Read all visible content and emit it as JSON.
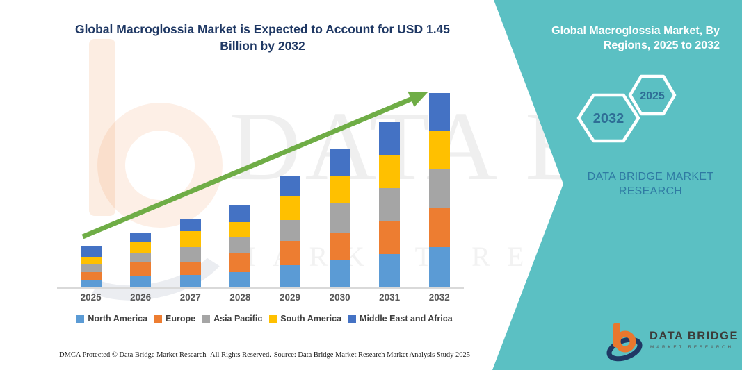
{
  "colors": {
    "teal_panel": "#5BC0C3",
    "title_navy": "#1F3864",
    "arrow_green": "#6FAD46",
    "axis_gray": "#D9D9D9",
    "x_label_gray": "#595959",
    "hex_year_blue": "#2E6E96",
    "panel_brand_blue": "#2F7AA3",
    "logo_orange": "#E8772E",
    "logo_navy": "#1F3864"
  },
  "header": {
    "title": "Global Macroglossia Market is Expected to Account for USD 1.45 Billion by 2032"
  },
  "panel": {
    "title": "Global Macroglossia Market, By Regions, 2025 to 2032",
    "hex_large": "2032",
    "hex_small": "2025",
    "brand_text": "DATA BRIDGE MARKET RESEARCH"
  },
  "logo": {
    "name": "DATA BRIDGE",
    "subtitle": "MARKET RESEARCH"
  },
  "watermark": {
    "big": "DATA BRIDGE",
    "small": "MARKET RESEARCH"
  },
  "footer": {
    "left": "DMCA Protected © Data Bridge Market Research-  All Rights Reserved.",
    "right": "Source: Data Bridge Market Research  Market Analysis Study 2025"
  },
  "chart_data": {
    "type": "bar",
    "stacked": true,
    "title": "Global Macroglossia Market is Expected to Account for USD 1.45 Billion by 2032",
    "unit": "USD billion (estimated from stylized chart; no value axis shown)",
    "target_annotation": "USD 1.45 Billion by 2032",
    "categories": [
      "2025",
      "2026",
      "2027",
      "2028",
      "2029",
      "2030",
      "2031",
      "2032"
    ],
    "series": [
      {
        "name": "North America",
        "color": "#5B9BD5",
        "values": [
          0.057,
          0.088,
          0.095,
          0.113,
          0.165,
          0.208,
          0.251,
          0.3
        ]
      },
      {
        "name": "Europe",
        "color": "#ED7D31",
        "values": [
          0.057,
          0.104,
          0.095,
          0.139,
          0.182,
          0.199,
          0.243,
          0.29
        ]
      },
      {
        "name": "Asia Pacific",
        "color": "#A5A5A5",
        "values": [
          0.057,
          0.062,
          0.113,
          0.121,
          0.156,
          0.225,
          0.251,
          0.29
        ]
      },
      {
        "name": "South America",
        "color": "#FFC000",
        "values": [
          0.057,
          0.088,
          0.121,
          0.116,
          0.182,
          0.208,
          0.248,
          0.287
        ]
      },
      {
        "name": "Middle East and Africa",
        "color": "#4472C4",
        "values": [
          0.083,
          0.068,
          0.09,
          0.126,
          0.147,
          0.196,
          0.246,
          0.284
        ]
      }
    ],
    "totals_usd_billion": [
      0.31,
      0.41,
      0.51,
      0.62,
      0.83,
      1.04,
      1.24,
      1.45
    ],
    "trend_arrow": true,
    "legend_position": "bottom",
    "gridlines": false,
    "xlabel": "",
    "ylabel": ""
  }
}
